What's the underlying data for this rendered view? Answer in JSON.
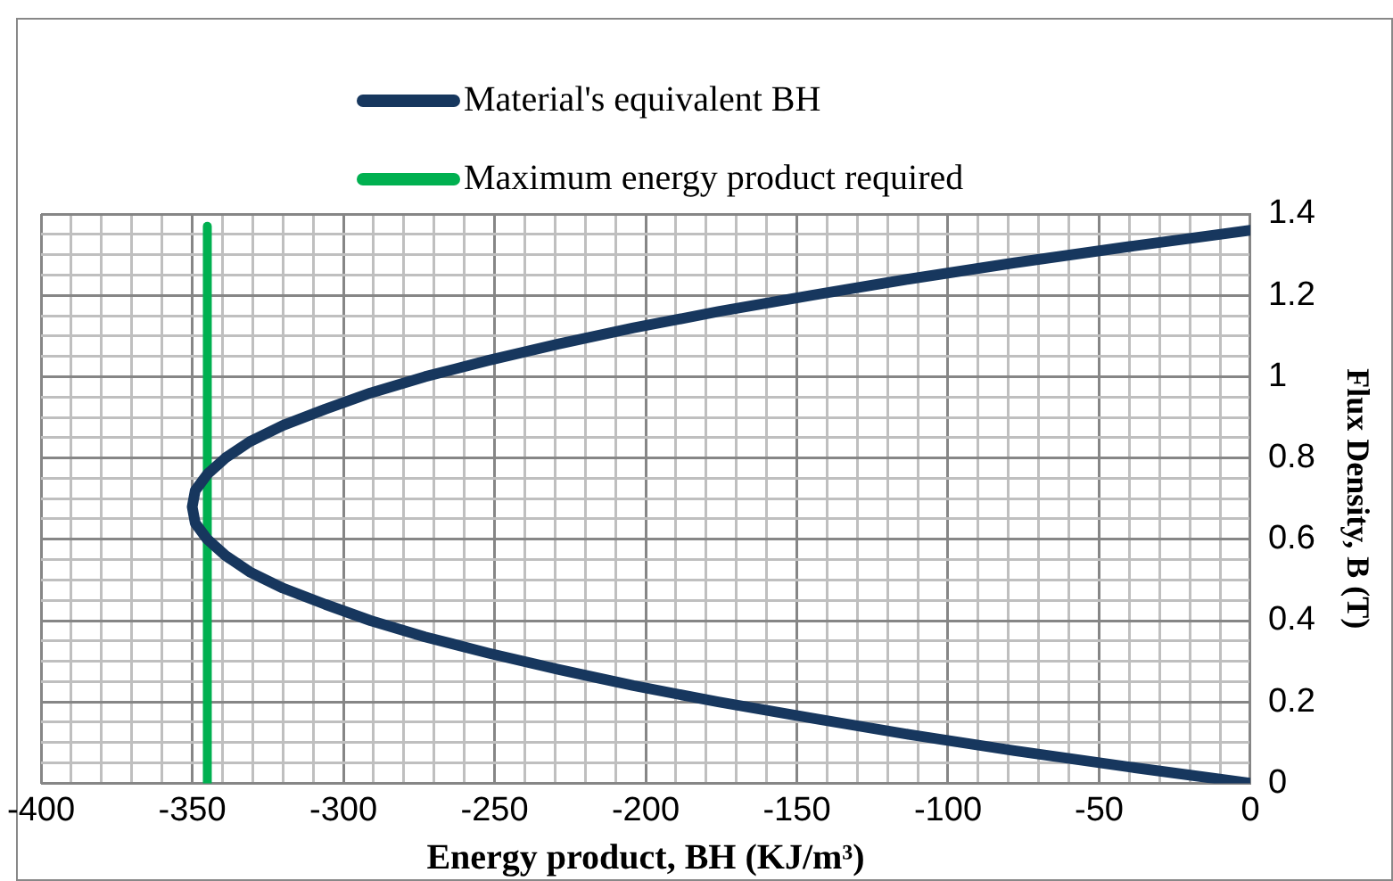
{
  "chart_data": {
    "type": "line",
    "xlabel": "Energy product, BH (KJ/m³)",
    "ylabel": "Flux Density, B (T)",
    "series": [
      {
        "name": "Material's equivalent BH",
        "color": "#17375e",
        "x": [
          0,
          -40,
          -78,
          -113,
          -145,
          -176,
          -204,
          -229,
          -252,
          -273,
          -291,
          -306,
          -320,
          -331,
          -339,
          -345,
          -349,
          -350,
          -349,
          -345,
          -339,
          -331,
          -320,
          -306,
          -291,
          -273,
          -252,
          -229,
          -204,
          -176,
          -145,
          -113,
          -78,
          -40,
          0
        ],
        "values": [
          0,
          0.04,
          0.08,
          0.12,
          0.16,
          0.2,
          0.24,
          0.28,
          0.32,
          0.36,
          0.4,
          0.44,
          0.48,
          0.52,
          0.56,
          0.6,
          0.64,
          0.68,
          0.72,
          0.76,
          0.8,
          0.84,
          0.88,
          0.92,
          0.96,
          1,
          1.04,
          1.08,
          1.12,
          1.16,
          1.2,
          1.24,
          1.28,
          1.32,
          1.36
        ]
      },
      {
        "name": "Maximum energy product required",
        "color": "#00b050",
        "x": [
          -345,
          -345
        ],
        "values": [
          0,
          1.37
        ]
      }
    ],
    "xlim": [
      -400,
      0
    ],
    "xticks": [
      -400,
      {
        "value": -390,
        "label": null
      },
      {
        "value": -380,
        "label": null
      },
      {
        "value": -370,
        "label": null
      },
      {
        "value": -360,
        "label": null
      },
      -350,
      {
        "value": -340,
        "label": null
      },
      {
        "value": -330,
        "label": null
      },
      {
        "value": -320,
        "label": null
      },
      {
        "value": -310,
        "label": null
      },
      -300,
      {
        "value": -290,
        "label": null
      },
      {
        "value": -280,
        "label": null
      },
      {
        "value": -270,
        "label": null
      },
      {
        "value": -260,
        "label": null
      },
      -250,
      {
        "value": -240,
        "label": null
      },
      {
        "value": -230,
        "label": null
      },
      {
        "value": -220,
        "label": null
      },
      {
        "value": -210,
        "label": null
      },
      -200,
      {
        "value": -190,
        "label": null
      },
      {
        "value": -180,
        "label": null
      },
      {
        "value": -170,
        "label": null
      },
      {
        "value": -160,
        "label": null
      },
      -150,
      {
        "value": -140,
        "label": null
      },
      {
        "value": -130,
        "label": null
      },
      {
        "value": -120,
        "label": null
      },
      {
        "value": -110,
        "label": null
      },
      -100,
      {
        "value": -90,
        "label": null
      },
      {
        "value": -80,
        "label": null
      },
      {
        "value": -70,
        "label": null
      },
      {
        "value": -60,
        "label": null
      },
      -50,
      {
        "value": -40,
        "label": null
      },
      {
        "value": -30,
        "label": null
      },
      {
        "value": -20,
        "label": null
      },
      {
        "value": -10,
        "label": null
      },
      0
    ],
    "ylim": [
      0,
      1.4
    ],
    "yticks": [
      0,
      {
        "value": 0.05,
        "label": null
      },
      {
        "value": 0.1,
        "label": null
      },
      {
        "value": 0.15,
        "label": null
      },
      0.2,
      {
        "value": 0.25,
        "label": null
      },
      {
        "value": 0.3,
        "label": null
      },
      {
        "value": 0.35,
        "label": null
      },
      0.4,
      {
        "value": 0.45,
        "label": null
      },
      {
        "value": 0.5,
        "label": null
      },
      {
        "value": 0.55,
        "label": null
      },
      0.6,
      {
        "value": 0.65,
        "label": null
      },
      {
        "value": 0.7,
        "label": null
      },
      {
        "value": 0.75,
        "label": null
      },
      0.8,
      {
        "value": 0.85,
        "label": null
      },
      {
        "value": 0.9,
        "label": null
      },
      {
        "value": 0.95,
        "label": null
      },
      1,
      {
        "value": 1.05,
        "label": null
      },
      {
        "value": 1.1,
        "label": null
      },
      {
        "value": 1.15,
        "label": null
      },
      1.2,
      {
        "value": 1.25,
        "label": null
      },
      {
        "value": 1.3,
        "label": null
      },
      {
        "value": 1.35,
        "label": null
      },
      1.4
    ],
    "grid": true,
    "legend": "top",
    "marker": "none",
    "line_style": "solid"
  }
}
